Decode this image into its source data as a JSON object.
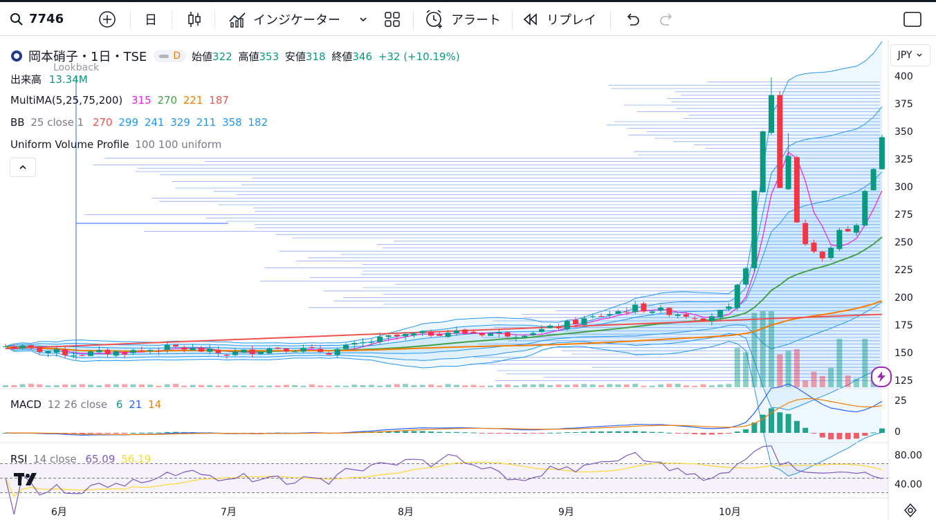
{
  "toolbar": {
    "symbol": "7746",
    "interval": "日",
    "indicators_label": "インジケーター",
    "alert_label": "アラート",
    "replay_label": "リプレイ"
  },
  "header": {
    "name": "岡本硝子・1日・TSE",
    "badge": "D",
    "open_label": "始値",
    "open": "322",
    "high_label": "高値",
    "high": "353",
    "low_label": "安値",
    "low": "318",
    "close_label": "終値",
    "close": "346",
    "change": "+32 (+10.19%)",
    "currency": "JPY"
  },
  "legends": {
    "volume_label": "出来高",
    "volume_value": "13.34M",
    "lookback": "Lookback",
    "multima_label": "MultiMA(5,25,75,200)",
    "ma5": "315",
    "ma25": "270",
    "ma75": "221",
    "ma200": "187",
    "bb_label": "BB",
    "bb_params": "25 close 1",
    "bb_vals": [
      "270",
      "299",
      "241",
      "329",
      "211",
      "358",
      "182"
    ],
    "uvp_label": "Uniform Volume Profile",
    "uvp_params": "100 100 uniform",
    "macd_label": "MACD",
    "macd_params": "12 26 close",
    "macd_vals": [
      "6",
      "21",
      "14"
    ],
    "rsi_label": "RSI",
    "rsi_params": "14 close",
    "rsi_val": "65.09",
    "rsi_ma": "56.19"
  },
  "price_axis": [
    "400",
    "375",
    "350",
    "325",
    "300",
    "275",
    "250",
    "225",
    "200",
    "175",
    "150",
    "125"
  ],
  "macd_axis": [
    "25",
    "0"
  ],
  "rsi_axis": [
    "80.00",
    "40.00"
  ],
  "time_axis": [
    "6月",
    "7月",
    "8月",
    "9月",
    "10月"
  ],
  "colors": {
    "up": "#089981",
    "down": "#f23645",
    "accent": "#2962ff",
    "bb": "#2196f3",
    "ma5": "#e91ee0",
    "ma25": "#43a047",
    "ma75": "#f57c00",
    "ma200": "#ef5350"
  }
}
